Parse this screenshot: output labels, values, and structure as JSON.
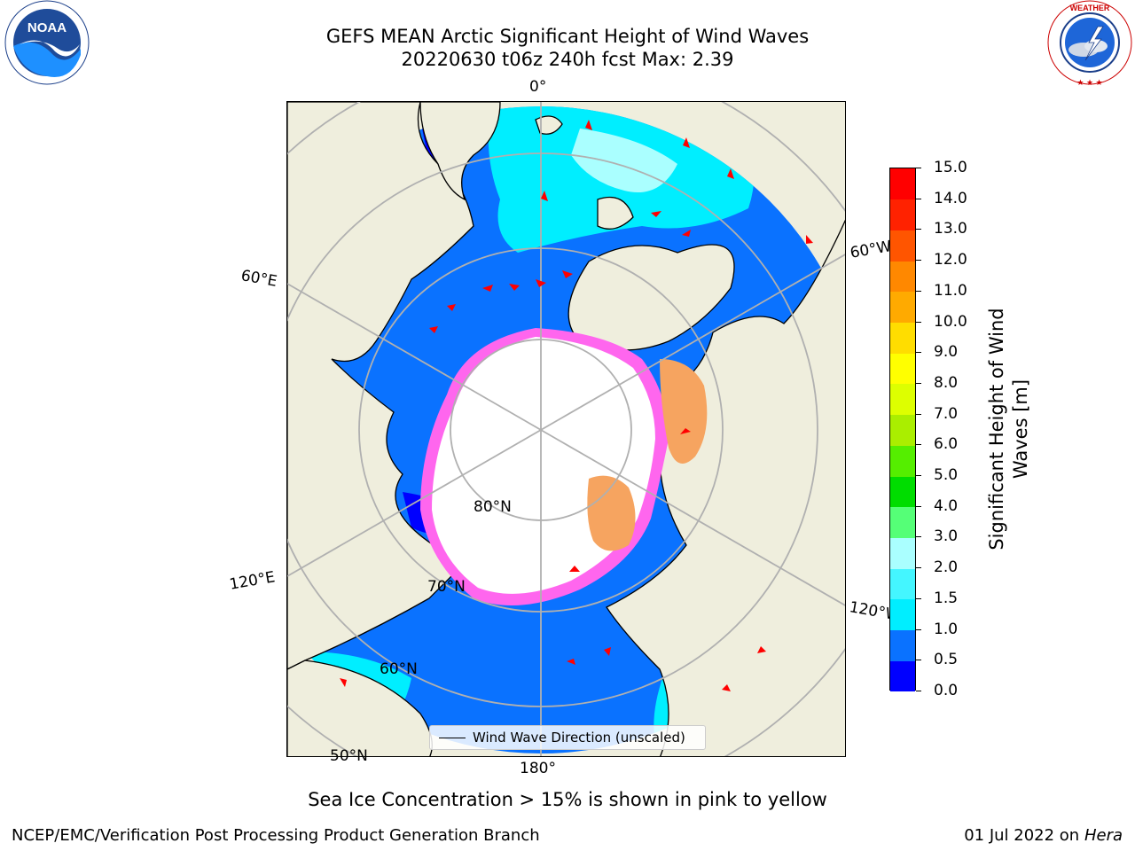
{
  "header": {
    "title_line1": "GEFS MEAN Arctic Significant Height of Wind Waves",
    "title_line2": "20220630 t06z 240h fcst   Max: 2.39"
  },
  "logos": {
    "left": {
      "icon": "noaa-logo",
      "text": "NOAA",
      "ring_text": "NATIONAL OCEANIC AND ATMOSPHERIC ADMINISTRATION · U.S. DEPARTMENT OF COMMERCE"
    },
    "right": {
      "icon": "nws-logo",
      "ring_text": "NATIONAL WEATHER SERVICE"
    }
  },
  "map": {
    "projection": "north-polar-stereographic",
    "graticule": {
      "meridian_labels": [
        "0°",
        "60°W",
        "120°W",
        "180°",
        "120°E",
        "60°E"
      ],
      "parallel_labels": [
        "80°N",
        "70°N",
        "60°N",
        "50°N"
      ]
    },
    "colors": {
      "land": "#efeedd",
      "ice_white": "#ffffff",
      "ice_pink": "#ff66ee",
      "ice_orange": "#f6a460",
      "grid": "#b0b0b0",
      "arrows": "#ff0000"
    },
    "legend": {
      "label": "Wind Wave Direction (unscaled)"
    },
    "max_value": 2.39
  },
  "colorbar": {
    "title": "Significant Height of Wind Waves [m]",
    "title_lines": [
      "Significant Height of Wind",
      "Waves [m]"
    ],
    "ticks": [
      "0.0",
      "0.5",
      "1.0",
      "1.5",
      "2.0",
      "3.0",
      "4.0",
      "5.0",
      "6.0",
      "7.0",
      "8.0",
      "9.0",
      "10.0",
      "11.0",
      "12.0",
      "13.0",
      "14.0",
      "15.0"
    ],
    "colors": [
      "#0000ff",
      "#0a72ff",
      "#00eeff",
      "#44f6ff",
      "#aaffff",
      "#55ff77",
      "#00dd00",
      "#55ee00",
      "#aaee00",
      "#ddff00",
      "#ffff00",
      "#ffdd00",
      "#ffaa00",
      "#ff8800",
      "#ff5500",
      "#ff2200",
      "#ff0000"
    ]
  },
  "caption": "Sea Ice Concentration > 15% is shown in pink to yellow",
  "footer": {
    "left": "NCEP/EMC/Verification Post Processing Product Generation Branch",
    "right_prefix": "01 Jul 2022 on ",
    "right_host": "Hera"
  }
}
